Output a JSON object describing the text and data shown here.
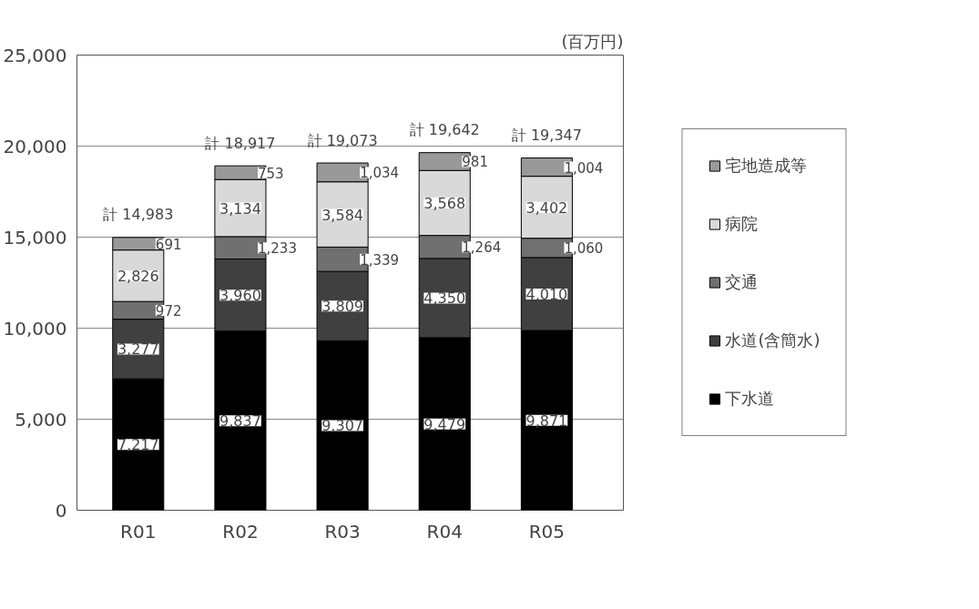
{
  "chart_data": {
    "type": "bar",
    "stacked": true,
    "categories": [
      "R01",
      "R02",
      "R03",
      "R04",
      "R05"
    ],
    "series": [
      {
        "name": "下水道",
        "color": "#000000",
        "values": [
          7217,
          9837,
          9307,
          9479,
          9871
        ],
        "value_labels": [
          "7,217",
          "9,837",
          "9,307",
          "9,479",
          "9,871"
        ]
      },
      {
        "name": "水道(含簡水)",
        "color": "#404040",
        "values": [
          3277,
          3960,
          3809,
          4350,
          4010
        ],
        "value_labels": [
          "3,277",
          "3,960",
          "3,809",
          "4,350",
          "4,010"
        ]
      },
      {
        "name": "交通",
        "color": "#707070",
        "values": [
          972,
          1233,
          1339,
          1264,
          1060
        ],
        "value_labels": [
          "972",
          "1,233",
          "1,339",
          "1,264",
          "1,060"
        ]
      },
      {
        "name": "病院",
        "color": "#d9d9d9",
        "values": [
          2826,
          3134,
          3584,
          3568,
          3402
        ],
        "value_labels": [
          "2,826",
          "3,134",
          "3,584",
          "3,568",
          "3,402"
        ]
      },
      {
        "name": "宅地造成等",
        "color": "#999999",
        "values": [
          691,
          753,
          1034,
          981,
          1004
        ],
        "value_labels": [
          "691",
          "753",
          "1,034",
          "981",
          "1,004"
        ]
      }
    ],
    "totals": [
      "計 14,983",
      "計 18,917",
      "計 19,073",
      "計 19,642",
      "計 19,347"
    ],
    "ylim": [
      0,
      25000
    ],
    "yticks": [
      0,
      {
        "value": 5000,
        "label": "5,000"
      },
      {
        "value": 10000,
        "label": "10,000"
      },
      {
        "value": 15000,
        "label": "15,000"
      },
      {
        "value": 20000,
        "label": "20,000"
      },
      {
        "value": 25000,
        "label": "25,000"
      }
    ],
    "grid": "y",
    "legend": "right",
    "annotations": [
      "(百万円)"
    ]
  }
}
